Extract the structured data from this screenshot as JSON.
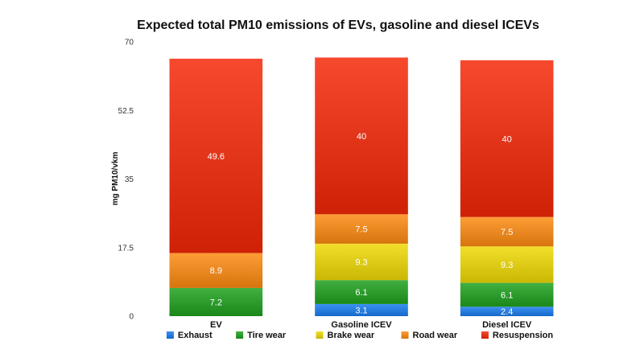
{
  "chart_data": {
    "type": "bar",
    "stacked": true,
    "title": "Expected total PM10 emissions of EVs, gasoline and diesel ICEVs",
    "xlabel": "",
    "ylabel": "mg PM10/vkm",
    "ylim": [
      0,
      70
    ],
    "yticks": [
      "0",
      "17.5",
      "35",
      "52.5",
      "70"
    ],
    "grid": false,
    "legend_position": "bottom",
    "categories": [
      "EV",
      "Gasoline ICEV",
      "Diesel ICEV"
    ],
    "series": [
      {
        "name": "Exhaust",
        "color": "#2a7fe0",
        "values": [
          0,
          3.1,
          2.4
        ],
        "labels": [
          "",
          "3.1",
          "2.4"
        ]
      },
      {
        "name": "Tire wear",
        "color": "#2f9e2f",
        "values": [
          7.2,
          6.1,
          6.1
        ],
        "labels": [
          "7.2",
          "6.1",
          "6.1"
        ]
      },
      {
        "name": "Brake wear",
        "color": "#e0cd1a",
        "values": [
          0,
          9.3,
          9.3
        ],
        "labels": [
          "",
          "9.3",
          "9.3"
        ]
      },
      {
        "name": "Road wear",
        "color": "#ec8a23",
        "values": [
          8.9,
          7.5,
          7.5
        ],
        "labels": [
          "8.9",
          "7.5",
          "7.5"
        ]
      },
      {
        "name": "Resuspension",
        "color": "#e4371c",
        "values": [
          49.6,
          40,
          40
        ],
        "labels": [
          "49.6",
          "40",
          "40"
        ]
      }
    ]
  }
}
